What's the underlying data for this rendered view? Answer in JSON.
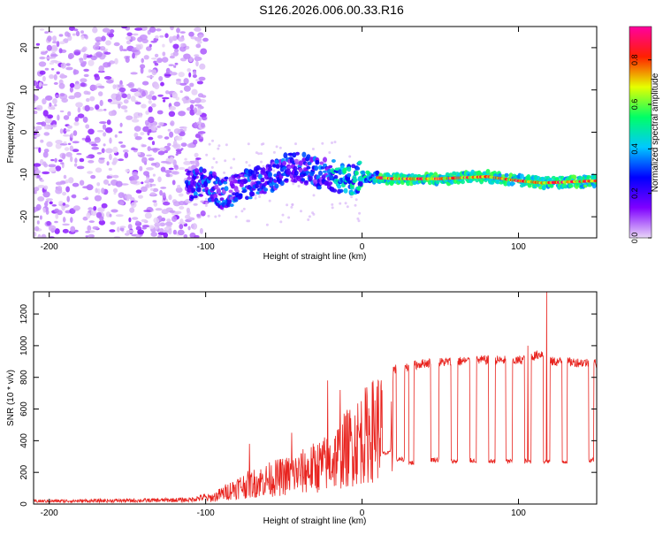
{
  "title": "S126.2026.006.00.33.R16",
  "chart_data": [
    {
      "type": "heatmap",
      "title": "S126.2026.006.00.33.R16",
      "xlabel": "Height of straight line (km)",
      "ylabel": "Frequency (Hz)",
      "xlim": [
        -210,
        150
      ],
      "ylim": [
        -25,
        25
      ],
      "xticks": [
        -200,
        -100,
        0,
        100
      ],
      "yticks": [
        20,
        10,
        0,
        -10,
        -20
      ],
      "colorbar": {
        "label": "Normalized spectral amplitude",
        "range": [
          0.0,
          0.95
        ],
        "ticks": [
          0.0,
          0.2,
          0.4,
          0.6,
          0.8
        ],
        "tick_labels": [
          "0.0",
          "0.2",
          "0.4",
          "0.6",
          "0.8"
        ],
        "colors": [
          "#e9d7f7",
          "#7f00ff",
          "#0000ff",
          "#00c8ff",
          "#00ff66",
          "#e6ff00",
          "#ff2000",
          "#ff00a0"
        ]
      },
      "noise_region": {
        "x_range": [
          -210,
          -100
        ],
        "freq_range": [
          -25,
          25
        ],
        "amplitude": "low (0.0-0.15)"
      },
      "signal_track": [
        {
          "x": -112,
          "freq": -12.5
        },
        {
          "x": -100,
          "freq": -12.0
        },
        {
          "x": -90,
          "freq": -14.5
        },
        {
          "x": -80,
          "freq": -13.5
        },
        {
          "x": -70,
          "freq": -12.0
        },
        {
          "x": -60,
          "freq": -11.0
        },
        {
          "x": -50,
          "freq": -9.0
        },
        {
          "x": -40,
          "freq": -8.0
        },
        {
          "x": -30,
          "freq": -9.5
        },
        {
          "x": -20,
          "freq": -10.0
        },
        {
          "x": -10,
          "freq": -11.5
        },
        {
          "x": 0,
          "freq": -10.5
        },
        {
          "x": 20,
          "freq": -11.0
        },
        {
          "x": 50,
          "freq": -11.0
        },
        {
          "x": 80,
          "freq": -10.5
        },
        {
          "x": 100,
          "freq": -11.5
        },
        {
          "x": 115,
          "freq": -12.0
        },
        {
          "x": 150,
          "freq": -11.5
        }
      ]
    },
    {
      "type": "line",
      "xlabel": "Height of straight line (km)",
      "ylabel": "SNR (10 * v/v)",
      "xlim": [
        -210,
        150
      ],
      "ylim": [
        0,
        1340
      ],
      "xticks": [
        -200,
        -100,
        0,
        100
      ],
      "yticks": [
        0,
        200,
        400,
        600,
        800,
        1000,
        1200
      ],
      "color": "#e8231e",
      "envelope": [
        {
          "x": -210,
          "y": 20
        },
        {
          "x": -140,
          "y": 25
        },
        {
          "x": -110,
          "y": 30
        },
        {
          "x": -95,
          "y": 60
        },
        {
          "x": -80,
          "y": 150
        },
        {
          "x": -60,
          "y": 220
        },
        {
          "x": -40,
          "y": 280
        },
        {
          "x": -20,
          "y": 380
        },
        {
          "x": -10,
          "y": 500
        },
        {
          "x": 0,
          "y": 600
        },
        {
          "x": 10,
          "y": 700
        },
        {
          "x": 20,
          "y": 850
        },
        {
          "x": 40,
          "y": 890
        },
        {
          "x": 60,
          "y": 900
        },
        {
          "x": 80,
          "y": 910
        },
        {
          "x": 100,
          "y": 905
        },
        {
          "x": 115,
          "y": 950
        },
        {
          "x": 120,
          "y": 900
        },
        {
          "x": 150,
          "y": 890
        }
      ],
      "spikes": [
        {
          "x": -72,
          "y": 380
        },
        {
          "x": -45,
          "y": 450
        },
        {
          "x": -22,
          "y": 780
        },
        {
          "x": -14,
          "y": 720
        },
        {
          "x": 118,
          "y": 1340
        },
        {
          "x": 106,
          "y": 1000
        }
      ],
      "dropouts": [
        {
          "x_start": 13,
          "x_end": 18,
          "y": 320
        },
        {
          "x_start": 22,
          "x_end": 27,
          "y": 280
        },
        {
          "x_start": 30,
          "x_end": 33,
          "y": 260
        },
        {
          "x_start": 44,
          "x_end": 49,
          "y": 280
        },
        {
          "x_start": 57,
          "x_end": 61,
          "y": 270
        },
        {
          "x_start": 69,
          "x_end": 73,
          "y": 275
        },
        {
          "x_start": 81,
          "x_end": 85,
          "y": 270
        },
        {
          "x_start": 92,
          "x_end": 96,
          "y": 270
        },
        {
          "x_start": 104,
          "x_end": 108,
          "y": 270
        },
        {
          "x_start": 116,
          "x_end": 120,
          "y": 270
        },
        {
          "x_start": 128,
          "x_end": 131,
          "y": 270
        },
        {
          "x_start": 145,
          "x_end": 148,
          "y": 280
        }
      ]
    }
  ]
}
